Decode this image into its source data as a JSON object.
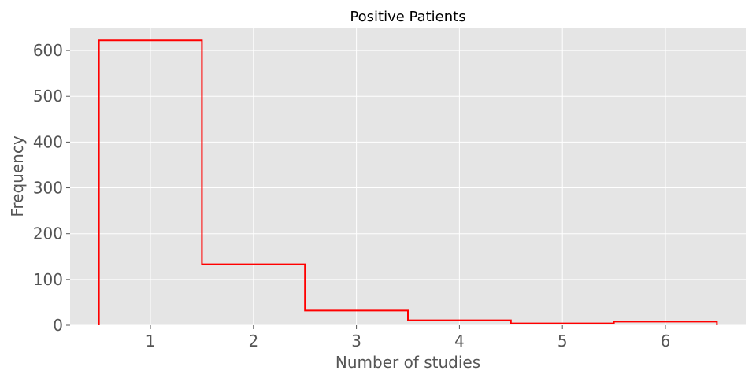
{
  "chart_data": {
    "type": "histogram",
    "title": "Positive Patients",
    "xlabel": "Number of studies",
    "ylabel": "Frequency",
    "histtype": "step",
    "bins": [
      {
        "left": 0.5,
        "right": 1.5,
        "value": 622
      },
      {
        "left": 1.5,
        "right": 2.5,
        "value": 133
      },
      {
        "left": 2.5,
        "right": 3.5,
        "value": 32
      },
      {
        "left": 3.5,
        "right": 4.5,
        "value": 11
      },
      {
        "left": 4.5,
        "right": 5.5,
        "value": 4
      },
      {
        "left": 5.5,
        "right": 6.5,
        "value": 8
      }
    ],
    "xlim": [
      0.22,
      6.78
    ],
    "ylim": [
      0,
      650
    ],
    "xticks": [
      1,
      2,
      3,
      4,
      5,
      6
    ],
    "yticks": [
      0,
      100,
      200,
      300,
      400,
      500,
      600
    ],
    "grid": true,
    "colors": {
      "line": "#ff0000",
      "plot_background": "#e5e5e5",
      "grid": "#ffffff",
      "tick_text": "#555555"
    }
  }
}
